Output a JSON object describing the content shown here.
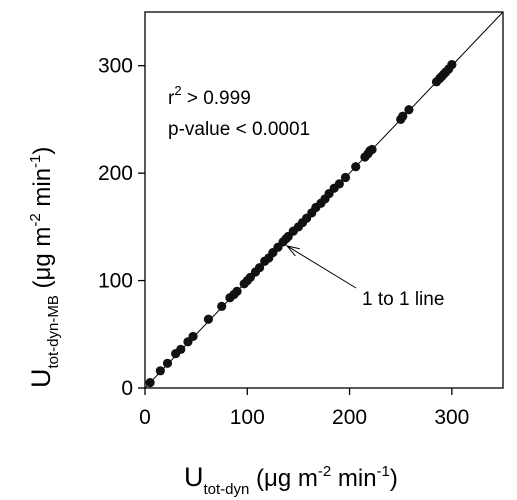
{
  "chart_data": {
    "type": "scatter",
    "xlabel": {
      "main": "U",
      "sub": "tot-dyn",
      "unit_open": " (μg m",
      "unit_exp1": "-2",
      "unit_mid": " min",
      "unit_exp2": "-1",
      "unit_close": ")"
    },
    "ylabel": {
      "main": "U",
      "sub": "tot-dyn-MB",
      "unit_open": " (μg m",
      "unit_exp1": "-2",
      "unit_mid": " min",
      "unit_exp2": "-1",
      "unit_close": ")"
    },
    "xlim": [
      0,
      350
    ],
    "ylim": [
      0,
      350
    ],
    "xticks": [
      0,
      100,
      200,
      300
    ],
    "yticks": [
      0,
      100,
      200,
      300
    ],
    "xtick_labels": [
      "0",
      "100",
      "200",
      "300"
    ],
    "ytick_labels": [
      "0",
      "100",
      "200",
      "300"
    ],
    "grid": false,
    "reference_line": {
      "label": "1 to 1 line",
      "from": [
        0,
        0
      ],
      "to": [
        350,
        350
      ],
      "pointer_at": [
        135,
        135
      ]
    },
    "annotations": {
      "r2_prefix": "r",
      "r2_exp": "2",
      "r2_rest": " > 0.999",
      "pvalue": "p-value < 0.0001"
    },
    "points": [
      [
        5,
        5
      ],
      [
        15,
        16
      ],
      [
        22,
        23
      ],
      [
        30,
        32
      ],
      [
        35,
        36
      ],
      [
        42,
        43
      ],
      [
        47,
        48
      ],
      [
        62,
        64
      ],
      [
        75,
        76
      ],
      [
        83,
        84
      ],
      [
        87,
        87
      ],
      [
        90,
        90
      ],
      [
        97,
        97
      ],
      [
        100,
        100
      ],
      [
        103,
        103
      ],
      [
        108,
        108
      ],
      [
        112,
        112
      ],
      [
        117,
        118
      ],
      [
        121,
        121
      ],
      [
        125,
        126
      ],
      [
        130,
        131
      ],
      [
        135,
        136
      ],
      [
        138,
        139
      ],
      [
        140,
        141
      ],
      [
        145,
        146
      ],
      [
        150,
        150
      ],
      [
        154,
        154
      ],
      [
        158,
        158
      ],
      [
        163,
        163
      ],
      [
        167,
        168
      ],
      [
        172,
        172
      ],
      [
        176,
        176
      ],
      [
        180,
        181
      ],
      [
        185,
        186
      ],
      [
        190,
        190
      ],
      [
        196,
        196
      ],
      [
        206,
        206
      ],
      [
        215,
        215
      ],
      [
        218,
        218
      ],
      [
        220,
        221
      ],
      [
        222,
        222
      ],
      [
        250,
        250
      ],
      [
        252,
        253
      ],
      [
        258,
        259
      ],
      [
        285,
        285
      ],
      [
        288,
        288
      ],
      [
        290,
        290
      ],
      [
        292,
        292
      ],
      [
        294,
        294
      ],
      [
        297,
        297
      ],
      [
        300,
        301
      ]
    ]
  }
}
